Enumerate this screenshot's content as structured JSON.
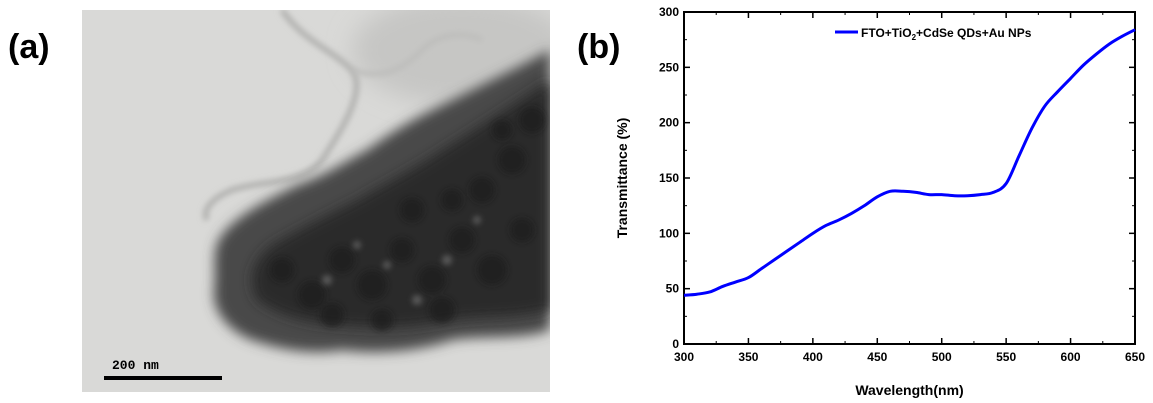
{
  "panels": {
    "a_label": "(a)",
    "b_label": "(b)"
  },
  "tem": {
    "scale_bar_text": "200 nm"
  },
  "chart_data": {
    "type": "line",
    "xlabel": "Wavelength(nm)",
    "ylabel": "Transmittance (%)",
    "xlim": [
      300,
      650
    ],
    "ylim": [
      0,
      300
    ],
    "xticks": [
      300,
      350,
      400,
      450,
      500,
      550,
      600,
      650
    ],
    "yticks": [
      0,
      50,
      100,
      150,
      200,
      250,
      300
    ],
    "legend_position": "top-right",
    "series": [
      {
        "name": "FTO+TiO2+CdSe QDs+Au NPs",
        "legend_parts": [
          "FTO+TiO",
          "2",
          "+CdSe QDs+Au NPs"
        ],
        "color": "#0000ff",
        "x": [
          300,
          310,
          320,
          330,
          340,
          350,
          360,
          370,
          380,
          390,
          400,
          410,
          420,
          430,
          440,
          450,
          460,
          470,
          480,
          490,
          500,
          510,
          520,
          530,
          540,
          550,
          560,
          570,
          580,
          590,
          600,
          610,
          620,
          630,
          640,
          650
        ],
        "y": [
          44,
          45,
          47,
          52,
          56,
          60,
          68,
          76,
          84,
          92,
          100,
          107,
          112,
          118,
          125,
          133,
          138,
          138,
          137,
          135,
          135,
          134,
          134,
          135,
          137,
          145,
          170,
          195,
          215,
          228,
          240,
          252,
          262,
          271,
          278,
          284
        ]
      }
    ]
  }
}
